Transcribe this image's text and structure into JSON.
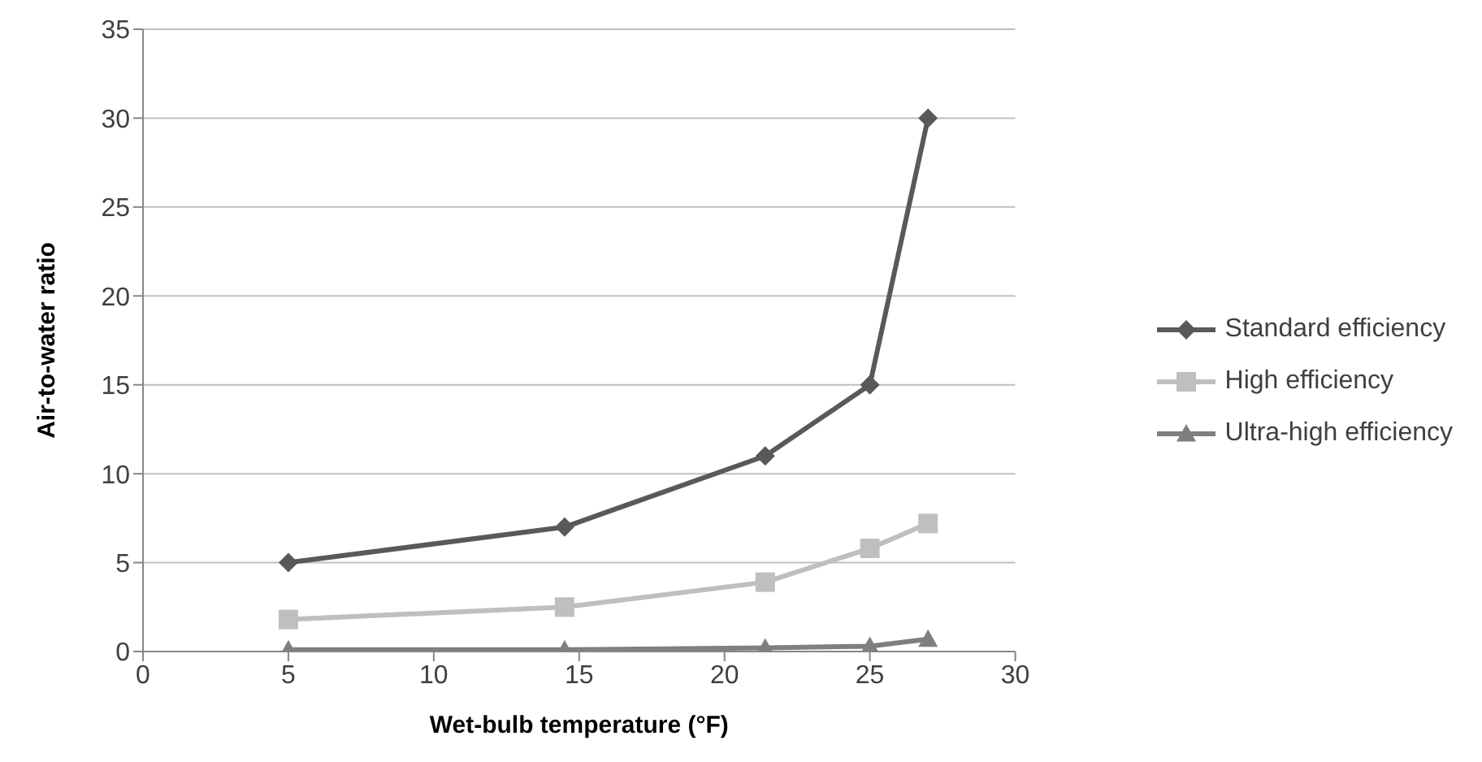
{
  "chart_data": {
    "type": "line",
    "xlabel": "Wet-bulb temperature (°F)",
    "ylabel": "Air-to-water ratio",
    "x": [
      5,
      14.5,
      21.4,
      25,
      27
    ],
    "series": [
      {
        "name": "Standard efficiency",
        "color": "#595959",
        "marker": "diamond",
        "values": [
          5,
          7,
          11,
          15,
          30
        ]
      },
      {
        "name": "High efficiency",
        "color": "#bfbfbf",
        "marker": "square",
        "values": [
          1.8,
          2.5,
          3.9,
          5.8,
          7.2
        ]
      },
      {
        "name": "Ultra-high efficiency",
        "color": "#7f7f7f",
        "marker": "triangle",
        "values": [
          0.1,
          0.1,
          0.2,
          0.3,
          0.7
        ]
      }
    ],
    "xlim": [
      0,
      30
    ],
    "xticks": [
      0,
      5,
      10,
      15,
      20,
      25,
      30
    ],
    "ylim": [
      0,
      35
    ],
    "yticks": [
      0,
      5,
      10,
      15,
      20,
      25,
      30,
      35
    ],
    "grid": "y",
    "legend": "right",
    "line_style": "solid"
  }
}
